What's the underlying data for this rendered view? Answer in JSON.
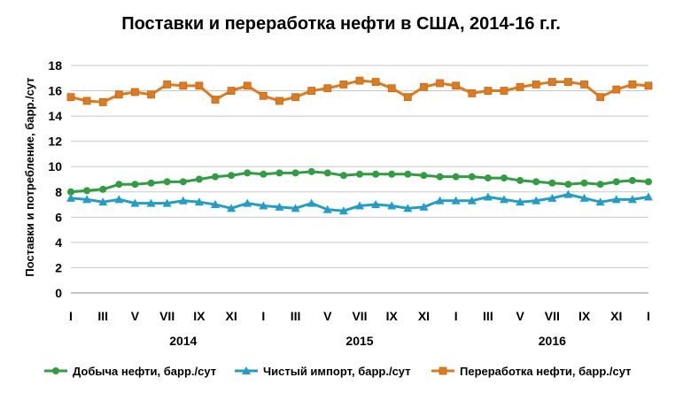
{
  "chart_data": {
    "type": "line",
    "title": "Поставки и переработка нефти в США, 2014-16 г.г.",
    "xlabel": "",
    "ylabel": "Поставки и потребление, барр./сут",
    "ylim": [
      0,
      18
    ],
    "yticks": [
      "0",
      "2",
      "4",
      "6",
      "8",
      "10",
      "12",
      "14",
      "16",
      "18"
    ],
    "grid": true,
    "legend_position": "bottom",
    "x": [
      "I",
      "II",
      "III",
      "IV",
      "V",
      "VI",
      "VII",
      "VIII",
      "IX",
      "X",
      "XI",
      "XII",
      "I",
      "II",
      "III",
      "IV",
      "V",
      "VI",
      "VII",
      "VIII",
      "IX",
      "X",
      "XI",
      "XII",
      "I",
      "II",
      "III",
      "IV",
      "V",
      "VI",
      "VII",
      "VIII",
      "IX",
      "X",
      "XI",
      "XII",
      "I"
    ],
    "x_tick_labels": [
      "I",
      "",
      "III",
      "",
      "V",
      "",
      "VII",
      "",
      "IX",
      "",
      "XI",
      "",
      "I",
      "",
      "III",
      "",
      "V",
      "",
      "VII",
      "",
      "IX",
      "",
      "XI",
      "",
      "I",
      "",
      "III",
      "",
      "V",
      "",
      "VII",
      "",
      "IX",
      "",
      "XI",
      "",
      "I"
    ],
    "year_labels": [
      {
        "label": "2014",
        "month_index": 7
      },
      {
        "label": "2015",
        "month_index": 18
      },
      {
        "label": "2016",
        "month_index": 30
      }
    ],
    "series": [
      {
        "name": "Добыча нефти, барр./сут",
        "color": "#2e9e3e",
        "marker": "circle",
        "values": [
          8.0,
          8.1,
          8.2,
          8.6,
          8.6,
          8.7,
          8.8,
          8.8,
          9.0,
          9.2,
          9.3,
          9.5,
          9.4,
          9.5,
          9.5,
          9.6,
          9.5,
          9.3,
          9.4,
          9.4,
          9.4,
          9.4,
          9.3,
          9.2,
          9.2,
          9.2,
          9.1,
          9.1,
          8.9,
          8.8,
          8.7,
          8.6,
          8.7,
          8.6,
          8.8,
          8.9,
          8.8
        ]
      },
      {
        "name": "Чистый импорт, барр./сут",
        "color": "#1f9ec9",
        "marker": "triangle",
        "values": [
          7.5,
          7.4,
          7.2,
          7.4,
          7.1,
          7.1,
          7.1,
          7.3,
          7.2,
          7.0,
          6.7,
          7.1,
          6.9,
          6.8,
          6.7,
          7.1,
          6.6,
          6.5,
          6.9,
          7.0,
          6.9,
          6.7,
          6.8,
          7.3,
          7.3,
          7.3,
          7.6,
          7.4,
          7.2,
          7.3,
          7.5,
          7.8,
          7.5,
          7.2,
          7.4,
          7.4,
          7.6
        ]
      },
      {
        "name": "Переработка нефти, барр./сут",
        "color": "#e07b1c",
        "marker": "square",
        "values": [
          15.5,
          15.2,
          15.1,
          15.7,
          15.9,
          15.7,
          16.5,
          16.4,
          16.4,
          15.3,
          16.0,
          16.4,
          15.6,
          15.2,
          15.5,
          16.0,
          16.2,
          16.5,
          16.8,
          16.7,
          16.2,
          15.5,
          16.3,
          16.6,
          16.4,
          15.8,
          16.0,
          16.0,
          16.3,
          16.5,
          16.7,
          16.7,
          16.5,
          15.5,
          16.1,
          16.5,
          16.4
        ]
      }
    ]
  }
}
